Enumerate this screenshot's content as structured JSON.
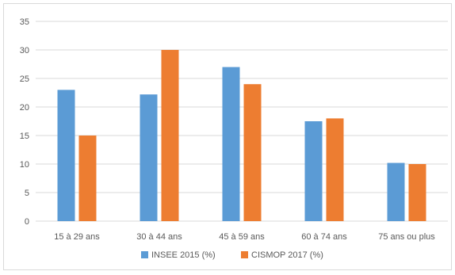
{
  "chart_data": {
    "type": "bar",
    "categories": [
      "15 à 29 ans",
      "30 à 44 ans",
      "45 à 59 ans",
      "60 à 74 ans",
      "75 ans ou plus"
    ],
    "series": [
      {
        "name": "INSEE 2015 (%)",
        "color": "#5b9bd5",
        "values": [
          23,
          22.2,
          27,
          17.5,
          10.2
        ]
      },
      {
        "name": "CISMOP 2017 (%)",
        "color": "#ed7d31",
        "values": [
          15,
          30,
          24,
          18,
          10
        ]
      }
    ],
    "title": "",
    "xlabel": "",
    "ylabel": "",
    "ylim": [
      0,
      35
    ],
    "yticks": [
      0,
      5,
      10,
      15,
      20,
      25,
      30,
      35
    ],
    "grid": true,
    "gridline_color": "#d9d9d9",
    "legend_position": "bottom"
  }
}
